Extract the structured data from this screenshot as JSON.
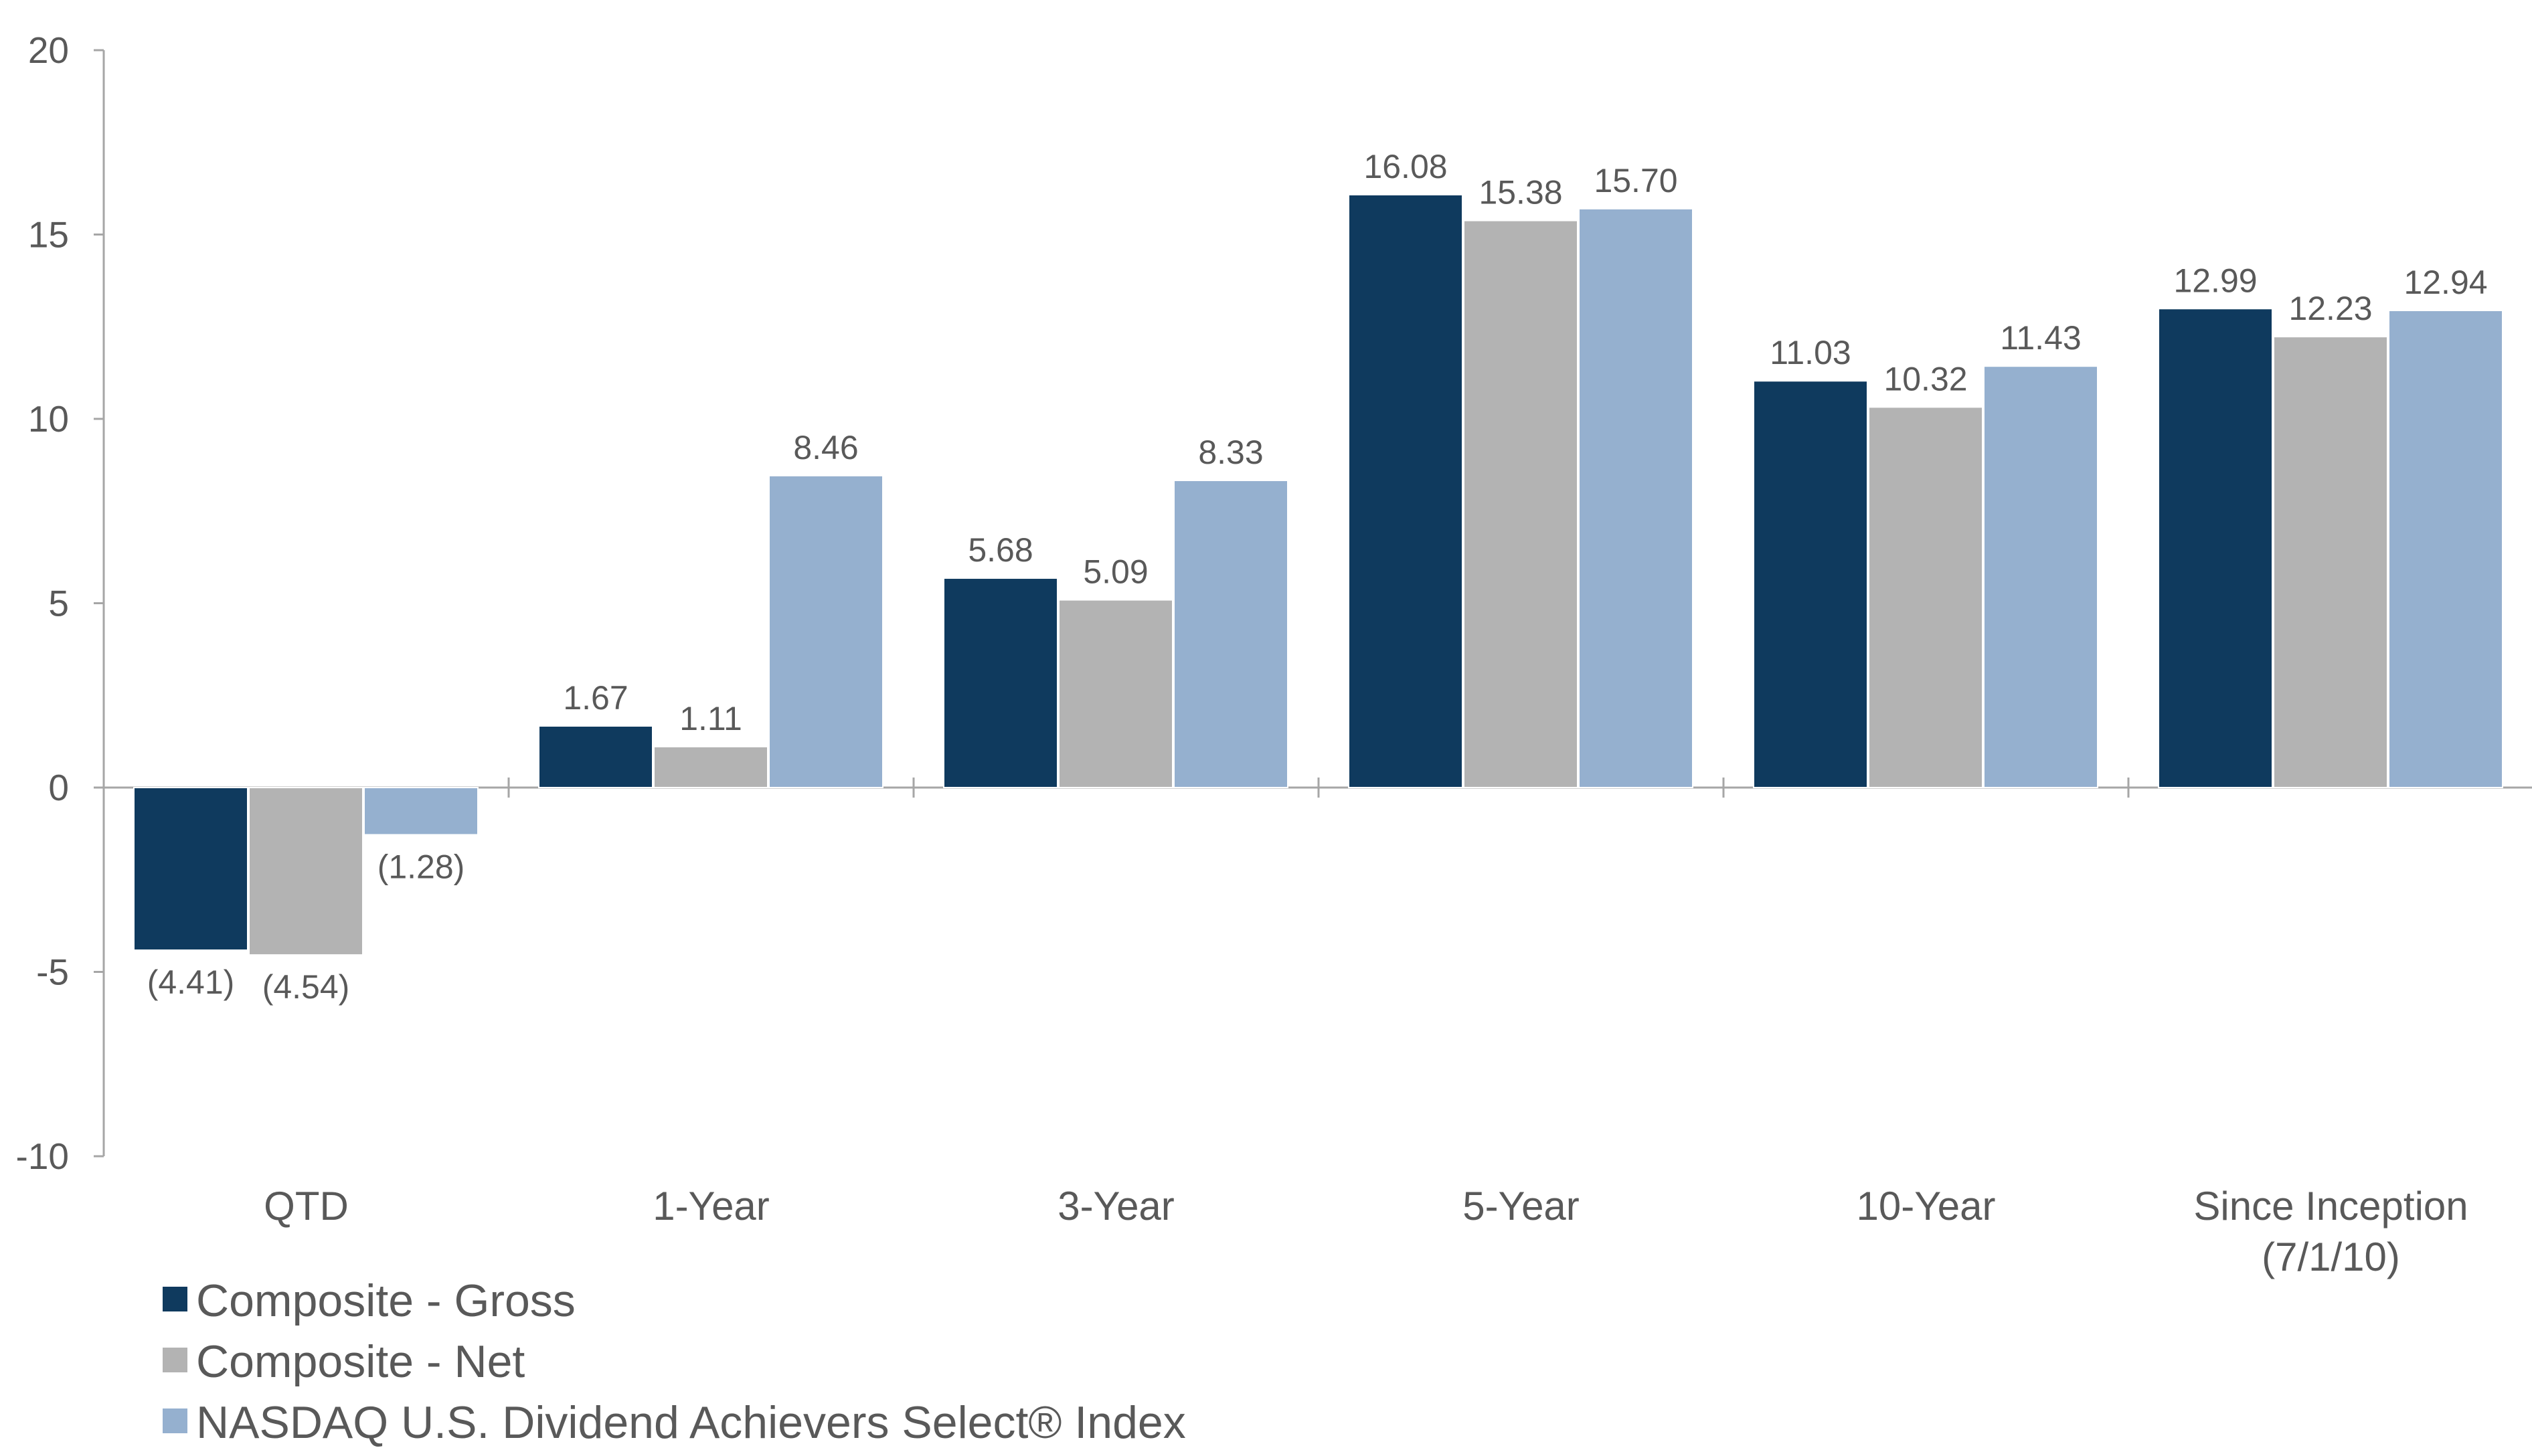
{
  "chart_data": {
    "type": "bar",
    "title": "",
    "xlabel": "",
    "ylabel": "",
    "ylim": [
      -10,
      20
    ],
    "yticks": [
      20,
      15,
      10,
      5,
      0,
      -5,
      -10
    ],
    "grid": false,
    "legend_position": "bottom-left",
    "categories": [
      [
        "QTD"
      ],
      [
        "1-Year"
      ],
      [
        "3-Year"
      ],
      [
        "5-Year"
      ],
      [
        "10-Year"
      ],
      [
        "Since Inception",
        "(7/1/10)"
      ]
    ],
    "series": [
      {
        "name": "Composite - Gross",
        "color": "#0f3a5e",
        "values": [
          -4.41,
          1.67,
          5.68,
          16.08,
          11.03,
          12.99
        ],
        "labels": [
          "(4.41)",
          "1.67",
          "5.68",
          "16.08",
          "11.03",
          "12.99"
        ]
      },
      {
        "name": "Composite - Net",
        "color": "#b3b3b3",
        "values": [
          -4.54,
          1.11,
          5.09,
          15.38,
          10.32,
          12.23
        ],
        "labels": [
          "(4.54)",
          "1.11",
          "5.09",
          "15.38",
          "10.32",
          "12.23"
        ]
      },
      {
        "name": "NASDAQ U.S. Dividend Achievers Select® Index",
        "color": "#95b0cf",
        "values": [
          -1.28,
          8.46,
          8.33,
          15.7,
          11.43,
          12.94
        ],
        "labels": [
          "(1.28)",
          "8.46",
          "8.33",
          "15.70",
          "11.43",
          "12.94"
        ]
      }
    ]
  }
}
